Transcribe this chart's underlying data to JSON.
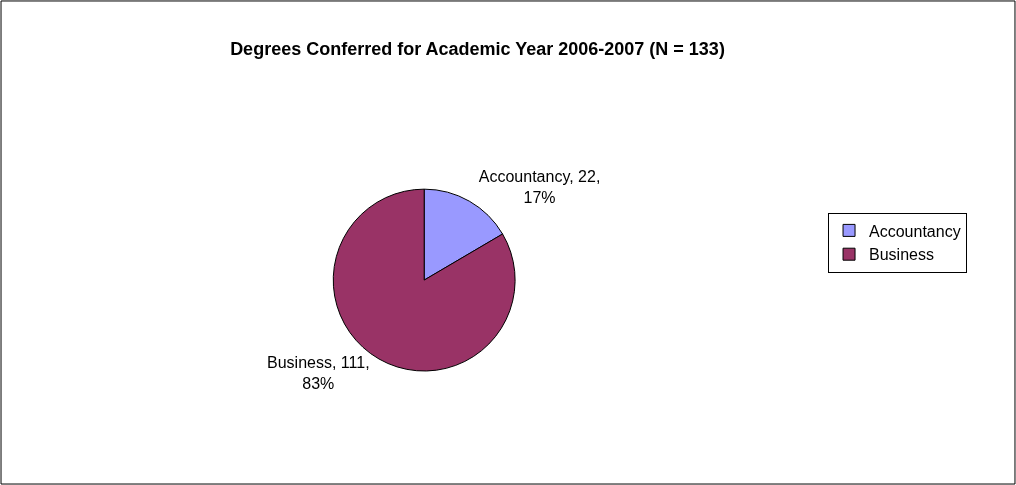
{
  "chart_data": {
    "type": "pie",
    "title": "Degrees Conferred for Academic Year 2006-2007 (N = 133)",
    "categories": [
      "Accountancy",
      "Business"
    ],
    "values": [
      22,
      111
    ],
    "colors": [
      "#9999ff",
      "#993366"
    ],
    "value_labels": [
      "Accountancy, 22,\n17%",
      "Business, 111,\n83%"
    ],
    "legend": "right"
  }
}
